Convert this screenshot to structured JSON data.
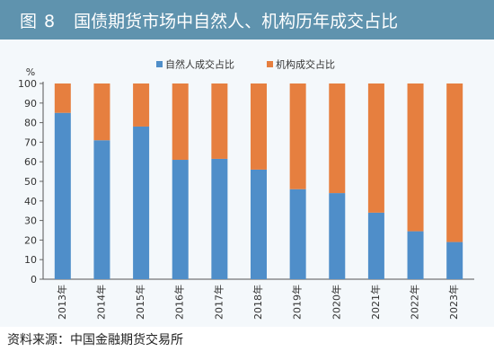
{
  "header": {
    "figure_label": "图 8",
    "title": "国债期货市场中自然人、机构历年成交占比"
  },
  "colors": {
    "header_bg": "#5f93ae",
    "series_1": "#4f8ec9",
    "series_2": "#e67f3f"
  },
  "chart_data": {
    "type": "bar",
    "stacked": true,
    "title": "国债期货市场中自然人、机构历年成交占比",
    "ylabel": "%",
    "ylim": [
      0,
      100
    ],
    "yticks": [
      0,
      10,
      20,
      30,
      40,
      50,
      60,
      70,
      80,
      90,
      100
    ],
    "categories": [
      "2013年",
      "2014年",
      "2015年",
      "2016年",
      "2017年",
      "2018年",
      "2019年",
      "2020年",
      "2021年",
      "2022年",
      "2023年"
    ],
    "legend_position": "top-center",
    "series": [
      {
        "name": "自然人成交占比",
        "color": "#4f8ec9",
        "values": [
          85,
          71,
          78,
          61,
          61.5,
          56,
          46,
          44,
          34,
          24.5,
          19
        ]
      },
      {
        "name": "机构成交占比",
        "color": "#e67f3f",
        "values": [
          15,
          29,
          22,
          39,
          38.5,
          44,
          54,
          56,
          66,
          75.5,
          81
        ]
      }
    ]
  },
  "footer": {
    "source": "资料来源：中国金融期货交易所"
  }
}
